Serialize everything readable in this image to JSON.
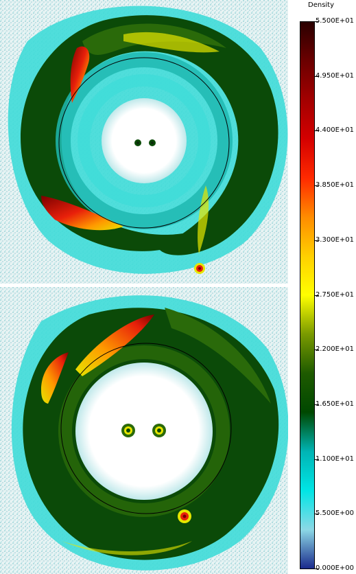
{
  "colorbar": {
    "title": "Density",
    "ticks": [
      "5.500E+01",
      "4.950E+01",
      "4.400E+01",
      "3.850E+01",
      "3.300E+01",
      "2.750E+01",
      "2.200E+01",
      "1.650E+01",
      "1.100E+01",
      "5.500E+00",
      "0.000E+00"
    ],
    "stops": [
      "#2a0000",
      "#6b0000",
      "#a30000",
      "#d40000",
      "#ff2a00",
      "#ff8c00",
      "#ffd000",
      "#ffff00",
      "#7a9a00",
      "#1e5a00",
      "#004800",
      "#00b4b4",
      "#00e5e5",
      "#8cd8e6",
      "#1a2a8c"
    ]
  },
  "colors": {
    "background": "#eef6f6",
    "outer_cyan": "#3fdcd8",
    "mid_teal": "#1fb8b0",
    "dark_green": "#0b4a08",
    "mid_green": "#2a6a0a",
    "yellow": "#e6e600",
    "red": "#e8200a",
    "dark_red": "#7a0000",
    "circle": "#000000"
  }
}
